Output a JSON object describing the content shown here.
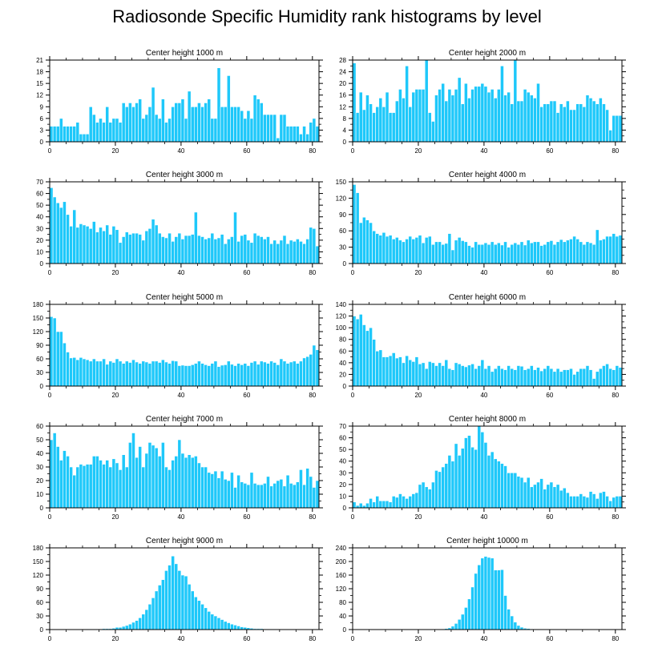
{
  "title": "Radiosonde Specific Humidity rank histograms by level",
  "colors": {
    "bar": "#1ec8fa",
    "bar_edge": "#ffffff",
    "axis": "#000000"
  },
  "chart_data": [
    {
      "type": "bar",
      "title": "Center height 1000 m",
      "xlim": [
        0,
        82
      ],
      "xticks": [
        0,
        20,
        40,
        60,
        80
      ],
      "ylim": [
        0,
        21
      ],
      "yticks": [
        0,
        3,
        6,
        9,
        12,
        15,
        18,
        21
      ],
      "values": [
        4,
        4,
        4,
        6,
        4,
        4,
        4,
        4,
        5,
        2,
        2,
        2,
        9,
        7,
        5,
        6,
        5,
        9,
        5,
        6,
        6,
        5,
        10,
        9,
        10,
        9,
        10,
        11,
        6,
        7,
        9,
        14,
        7,
        6,
        11,
        5,
        6,
        9,
        10,
        10,
        11,
        6,
        13,
        9,
        9,
        10,
        9,
        10,
        11,
        6,
        6,
        19,
        9,
        9,
        17,
        9,
        9,
        9,
        8,
        6,
        8,
        6,
        12,
        11,
        10,
        7,
        7,
        7,
        7,
        1,
        7,
        7,
        4,
        4,
        4,
        4,
        2,
        4,
        2,
        5,
        6,
        4
      ]
    },
    {
      "type": "bar",
      "title": "Center height 2000 m",
      "xlim": [
        0,
        82
      ],
      "xticks": [
        0,
        20,
        40,
        60,
        80
      ],
      "ylim": [
        0,
        28
      ],
      "yticks": [
        0,
        4,
        8,
        12,
        16,
        20,
        24,
        28
      ],
      "values": [
        27,
        10,
        17,
        11,
        16,
        13,
        10,
        12,
        15,
        12,
        17,
        10,
        10,
        14,
        18,
        15,
        26,
        12,
        17,
        18,
        18,
        18,
        28,
        10,
        7,
        16,
        18,
        20,
        14,
        18,
        16,
        18,
        22,
        13,
        20,
        15,
        18,
        19,
        19,
        20,
        19,
        17,
        18,
        15,
        18,
        26,
        16,
        17,
        13,
        28,
        14,
        14,
        18,
        17,
        16,
        15,
        20,
        12,
        13,
        13,
        14,
        14,
        10,
        13,
        12,
        14,
        11,
        11,
        13,
        13,
        12,
        16,
        15,
        14,
        13,
        15,
        13,
        11,
        4,
        9,
        9,
        9
      ]
    },
    {
      "type": "bar",
      "title": "Center height 3000 m",
      "xlim": [
        0,
        82
      ],
      "xticks": [
        0,
        20,
        40,
        60,
        80
      ],
      "ylim": [
        0,
        70
      ],
      "yticks": [
        0,
        10,
        20,
        30,
        40,
        50,
        60,
        70
      ],
      "values": [
        65,
        57,
        52,
        48,
        53,
        42,
        32,
        46,
        31,
        34,
        33,
        32,
        30,
        36,
        27,
        31,
        28,
        33,
        25,
        32,
        29,
        18,
        23,
        27,
        25,
        26,
        26,
        25,
        20,
        28,
        30,
        38,
        33,
        26,
        23,
        22,
        26,
        19,
        23,
        26,
        21,
        24,
        24,
        25,
        44,
        24,
        23,
        21,
        22,
        26,
        21,
        22,
        25,
        17,
        21,
        23,
        44,
        19,
        24,
        25,
        20,
        18,
        26,
        24,
        23,
        21,
        23,
        17,
        20,
        17,
        20,
        24,
        17,
        20,
        19,
        21,
        19,
        17,
        21,
        31,
        30,
        15
      ]
    },
    {
      "type": "bar",
      "title": "Center height 4000 m",
      "xlim": [
        0,
        82
      ],
      "xticks": [
        0,
        20,
        40,
        60,
        80
      ],
      "ylim": [
        0,
        150
      ],
      "yticks": [
        0,
        30,
        60,
        90,
        120,
        150
      ],
      "values": [
        145,
        130,
        75,
        85,
        80,
        75,
        60,
        55,
        52,
        57,
        50,
        52,
        45,
        48,
        43,
        40,
        45,
        50,
        45,
        48,
        52,
        38,
        48,
        50,
        35,
        40,
        40,
        35,
        37,
        55,
        25,
        43,
        48,
        42,
        40,
        33,
        30,
        40,
        35,
        35,
        38,
        35,
        40,
        35,
        38,
        34,
        40,
        30,
        35,
        38,
        35,
        40,
        34,
        43,
        38,
        40,
        40,
        33,
        35,
        40,
        42,
        35,
        40,
        44,
        40,
        43,
        45,
        50,
        45,
        40,
        35,
        40,
        38,
        35,
        62,
        43,
        45,
        50,
        50,
        55,
        50,
        52
      ]
    },
    {
      "type": "bar",
      "title": "Center height 5000 m",
      "xlim": [
        0,
        82
      ],
      "xticks": [
        0,
        20,
        40,
        60,
        80
      ],
      "ylim": [
        0,
        180
      ],
      "yticks": [
        0,
        30,
        60,
        90,
        120,
        150,
        180
      ],
      "values": [
        153,
        150,
        120,
        120,
        95,
        75,
        62,
        63,
        58,
        63,
        60,
        58,
        55,
        60,
        55,
        55,
        60,
        48,
        55,
        52,
        60,
        55,
        50,
        55,
        52,
        58,
        53,
        50,
        55,
        53,
        50,
        55,
        55,
        52,
        58,
        53,
        50,
        56,
        55,
        45,
        46,
        45,
        45,
        47,
        50,
        55,
        50,
        47,
        45,
        50,
        55,
        43,
        46,
        47,
        55,
        48,
        45,
        50,
        47,
        50,
        45,
        52,
        55,
        48,
        55,
        53,
        50,
        55,
        52,
        47,
        60,
        55,
        50,
        53,
        55,
        50,
        55,
        62,
        65,
        70,
        90,
        80
      ]
    },
    {
      "type": "bar",
      "title": "Center height 6000 m",
      "xlim": [
        0,
        82
      ],
      "xticks": [
        0,
        20,
        40,
        60,
        80
      ],
      "ylim": [
        0,
        140
      ],
      "yticks": [
        0,
        20,
        40,
        60,
        80,
        100,
        120,
        140
      ],
      "values": [
        120,
        115,
        123,
        105,
        95,
        100,
        80,
        60,
        62,
        50,
        50,
        52,
        57,
        48,
        50,
        40,
        52,
        45,
        42,
        50,
        38,
        40,
        30,
        42,
        40,
        35,
        40,
        35,
        45,
        30,
        28,
        40,
        38,
        35,
        33,
        36,
        38,
        30,
        35,
        45,
        30,
        35,
        25,
        30,
        35,
        30,
        28,
        35,
        30,
        28,
        35,
        34,
        28,
        30,
        35,
        28,
        32,
        26,
        30,
        35,
        30,
        25,
        30,
        25,
        28,
        28,
        30,
        20,
        25,
        30,
        30,
        35,
        28,
        13,
        25,
        30,
        35,
        38,
        30,
        28,
        35,
        32
      ]
    },
    {
      "type": "bar",
      "title": "Center height 7000 m",
      "xlim": [
        0,
        82
      ],
      "xticks": [
        0,
        20,
        40,
        60,
        80
      ],
      "ylim": [
        0,
        60
      ],
      "yticks": [
        0,
        10,
        20,
        30,
        40,
        50,
        60
      ],
      "values": [
        50,
        55,
        45,
        35,
        42,
        38,
        30,
        24,
        30,
        32,
        31,
        32,
        32,
        38,
        38,
        35,
        32,
        35,
        30,
        36,
        33,
        28,
        39,
        30,
        48,
        55,
        37,
        45,
        30,
        40,
        48,
        46,
        44,
        38,
        48,
        30,
        28,
        35,
        38,
        50,
        40,
        37,
        39,
        37,
        38,
        33,
        30,
        30,
        26,
        25,
        27,
        22,
        27,
        21,
        20,
        26,
        15,
        24,
        19,
        18,
        17,
        26,
        18,
        17,
        17,
        18,
        23,
        16,
        18,
        20,
        21,
        16,
        24,
        18,
        17,
        19,
        28,
        17,
        29,
        23,
        15,
        20
      ]
    },
    {
      "type": "bar",
      "title": "Center height 8000 m",
      "xlim": [
        0,
        82
      ],
      "xticks": [
        0,
        20,
        40,
        60,
        80
      ],
      "ylim": [
        0,
        70
      ],
      "yticks": [
        0,
        10,
        20,
        30,
        40,
        50,
        60,
        70
      ],
      "values": [
        5,
        2,
        4,
        2,
        4,
        8,
        5,
        10,
        6,
        6,
        6,
        5,
        10,
        9,
        12,
        10,
        8,
        10,
        12,
        13,
        20,
        22,
        18,
        16,
        22,
        32,
        31,
        35,
        38,
        45,
        40,
        55,
        45,
        51,
        60,
        62,
        52,
        50,
        70,
        65,
        56,
        45,
        48,
        42,
        40,
        38,
        36,
        30,
        30,
        30,
        27,
        26,
        22,
        26,
        18,
        20,
        22,
        25,
        16,
        20,
        22,
        18,
        20,
        15,
        17,
        13,
        10,
        10,
        10,
        12,
        10,
        9,
        14,
        12,
        8,
        13,
        14,
        10,
        6,
        9,
        10,
        10
      ]
    },
    {
      "type": "bar",
      "title": "Center height 9000 m",
      "xlim": [
        0,
        82
      ],
      "xticks": [
        0,
        20,
        40,
        60,
        80
      ],
      "ylim": [
        0,
        180
      ],
      "yticks": [
        0,
        30,
        60,
        90,
        120,
        150,
        180
      ],
      "values": [
        0,
        0,
        0,
        0,
        0,
        0,
        0,
        0,
        0,
        0,
        0,
        1,
        1,
        1,
        1,
        1,
        2,
        2,
        2,
        3,
        5,
        5,
        7,
        9,
        12,
        16,
        20,
        26,
        34,
        44,
        56,
        70,
        85,
        98,
        110,
        130,
        142,
        162,
        145,
        130,
        120,
        118,
        100,
        85,
        72,
        64,
        56,
        48,
        40,
        34,
        30,
        26,
        22,
        18,
        15,
        12,
        10,
        8,
        6,
        5,
        4,
        3,
        2,
        2,
        2,
        1,
        1,
        1,
        1,
        0,
        0,
        0,
        0,
        0,
        0,
        0,
        0,
        0,
        0,
        0,
        0,
        0
      ]
    },
    {
      "type": "bar",
      "title": "Center height 10000 m",
      "xlim": [
        0,
        82
      ],
      "xticks": [
        0,
        20,
        40,
        60,
        80
      ],
      "ylim": [
        0,
        240
      ],
      "yticks": [
        0,
        40,
        80,
        120,
        160,
        200,
        240
      ],
      "values": [
        0,
        0,
        0,
        0,
        0,
        0,
        0,
        0,
        0,
        0,
        0,
        0,
        0,
        0,
        0,
        0,
        0,
        0,
        0,
        0,
        0,
        0,
        0,
        0,
        0,
        1,
        1,
        2,
        3,
        5,
        10,
        18,
        30,
        45,
        65,
        90,
        125,
        165,
        190,
        210,
        215,
        212,
        210,
        175,
        175,
        176,
        100,
        60,
        40,
        22,
        12,
        7,
        4,
        3,
        2,
        1,
        1,
        1,
        0,
        0,
        0,
        0,
        0,
        0,
        0,
        0,
        0,
        0,
        0,
        0,
        0,
        0
      ]
    }
  ]
}
